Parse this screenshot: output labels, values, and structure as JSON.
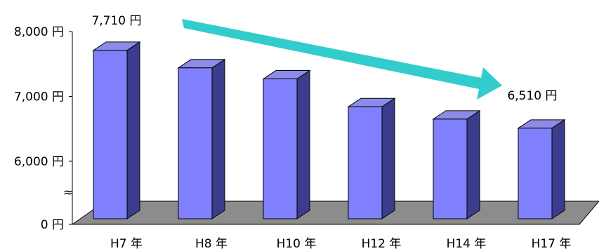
{
  "chart_data": {
    "type": "bar",
    "style": "3d-column",
    "categories": [
      "H7 年",
      "H8 年",
      "H10 年",
      "H12 年",
      "H14 年",
      "H17 年"
    ],
    "values": [
      7710,
      7440,
      7270,
      6840,
      6650,
      6510
    ],
    "y_ticks": [
      {
        "value": 8000,
        "label": "8,000 円"
      },
      {
        "value": 7000,
        "label": "7,000 円"
      },
      {
        "value": 6000,
        "label": "6,000 円"
      },
      {
        "value": 0,
        "label": "0 円"
      }
    ],
    "axis_break": true,
    "axis_break_symbol": "≈",
    "ylim": [
      0,
      8000
    ],
    "grid": false,
    "annotations": [
      {
        "text": "7,710 円",
        "category": "H7 年"
      },
      {
        "text": "6,510 円",
        "category": "H17 年"
      }
    ],
    "trend_arrow": {
      "from": "H7 年",
      "to": "H17 年",
      "direction": "down"
    }
  },
  "colors": {
    "bar_front": "#8080ff",
    "bar_top": "#8c8ce8",
    "bar_side": "#3c3c8c",
    "floor": "#8c8c8c",
    "arrow": "#33cccc"
  }
}
